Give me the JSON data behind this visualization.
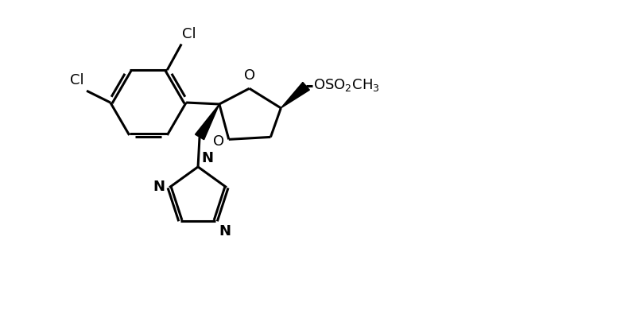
{
  "background_color": "#ffffff",
  "line_color": "#000000",
  "line_width": 2.2,
  "figsize": [
    8.0,
    4.0
  ],
  "dpi": 100,
  "xlim": [
    0,
    8
  ],
  "ylim": [
    0,
    4
  ]
}
